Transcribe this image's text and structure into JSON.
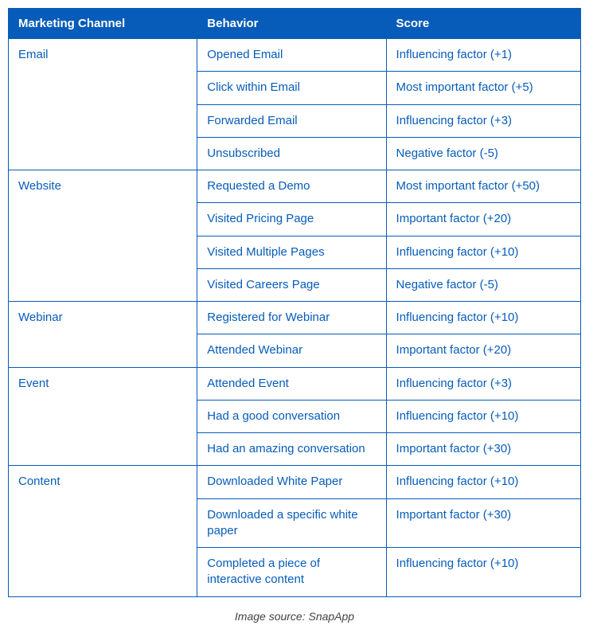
{
  "table": {
    "header_bg": "#075cb9",
    "header_text_color": "#ffffff",
    "cell_text_color": "#075cb9",
    "border_color": "#075cb9",
    "background_color": "#ffffff",
    "columns": [
      {
        "label": "Marketing Channel",
        "width_pct": 33
      },
      {
        "label": "Behavior",
        "width_pct": 33
      },
      {
        "label": "Score",
        "width_pct": 34
      }
    ],
    "groups": [
      {
        "channel": "Email",
        "rows": [
          {
            "behavior": "Opened Email",
            "score": "Influencing factor (+1)"
          },
          {
            "behavior": "Click within Email",
            "score": "Most important factor (+5)"
          },
          {
            "behavior": "Forwarded Email",
            "score": "Influencing factor (+3)"
          },
          {
            "behavior": "Unsubscribed",
            "score": "Negative factor (-5)"
          }
        ]
      },
      {
        "channel": "Website",
        "rows": [
          {
            "behavior": "Requested a Demo",
            "score": "Most important factor (+50)"
          },
          {
            "behavior": "Visited Pricing Page",
            "score": "Important factor (+20)"
          },
          {
            "behavior": "Visited Multiple Pages",
            "score": "Influencing factor (+10)"
          },
          {
            "behavior": "Visited Careers Page",
            "score": "Negative factor (-5)"
          }
        ]
      },
      {
        "channel": "Webinar",
        "rows": [
          {
            "behavior": "Registered for Webinar",
            "score": "Influencing factor (+10)"
          },
          {
            "behavior": "Attended Webinar",
            "score": "Important factor (+20)"
          }
        ]
      },
      {
        "channel": "Event",
        "rows": [
          {
            "behavior": "Attended Event",
            "score": "Influencing factor (+3)"
          },
          {
            "behavior": "Had a good conversation",
            "score": "Influencing factor (+10)"
          },
          {
            "behavior": "Had an amazing conversation",
            "score": "Important factor (+30)"
          }
        ]
      },
      {
        "channel": "Content",
        "rows": [
          {
            "behavior": "Downloaded White Paper",
            "score": "Influencing factor (+10)"
          },
          {
            "behavior": "Downloaded a specific white paper",
            "score": "Important factor (+30)"
          },
          {
            "behavior": "Completed a piece of interactive content",
            "score": "Influencing factor (+10)"
          }
        ]
      }
    ]
  },
  "caption": "Image source: SnapApp"
}
